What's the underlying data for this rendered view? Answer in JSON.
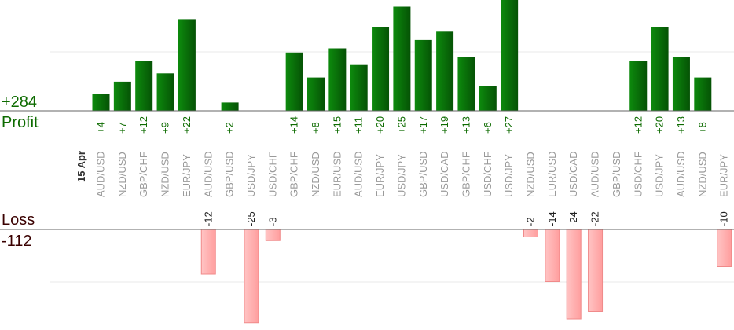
{
  "summary": {
    "profit_total": "+284",
    "profit_label": "Profit",
    "loss_label": "Loss",
    "loss_total": "-112"
  },
  "colors": {
    "profit_bar": "#0a6e0a",
    "profit_text": "#0d6b00",
    "loss_bar": "#ffb3b3",
    "loss_text": "#3a0000"
  },
  "chart_data": {
    "type": "bar",
    "title": "",
    "date_label": "15 Apr",
    "categories": [
      "AUD/USD",
      "NZD/USD",
      "GBP/CHF",
      "NZD/USD",
      "EUR/JPY",
      "AUD/USD",
      "GBP/USD",
      "USD/JPY",
      "USD/CHF",
      "GBP/CHF",
      "NZD/USD",
      "EUR/USD",
      "AUD/USD",
      "EUR/JPY",
      "USD/JPY",
      "GBP/USD",
      "USD/CAD",
      "GBP/CHF",
      "USD/CHF",
      "USD/JPY",
      "NZD/USD",
      "EUR/USD",
      "USD/CAD",
      "AUD/USD",
      "GBP/USD",
      "USD/CHF",
      "USD/JPY",
      "AUD/USD",
      "NZD/USD",
      "EUR/JPY"
    ],
    "series": [
      {
        "values": [
          4,
          7,
          12,
          9,
          22,
          -12,
          2,
          -25,
          -3,
          14,
          8,
          15,
          11,
          20,
          25,
          17,
          19,
          13,
          6,
          27,
          -2,
          -14,
          -24,
          -22,
          null,
          12,
          20,
          13,
          8,
          -10
        ]
      }
    ],
    "value_labels": [
      "+4",
      "+7",
      "+12",
      "+9",
      "+22",
      "-12",
      "+2",
      "-25",
      "-3",
      "+14",
      "+8",
      "+15",
      "+11",
      "+20",
      "+25",
      "+17",
      "+19",
      "+13",
      "+6",
      "+27",
      "-2",
      "-14",
      "-24",
      "-22",
      "",
      "+12",
      "+20",
      "+13",
      "+8",
      "-10"
    ],
    "grid": true,
    "legend": "none"
  }
}
